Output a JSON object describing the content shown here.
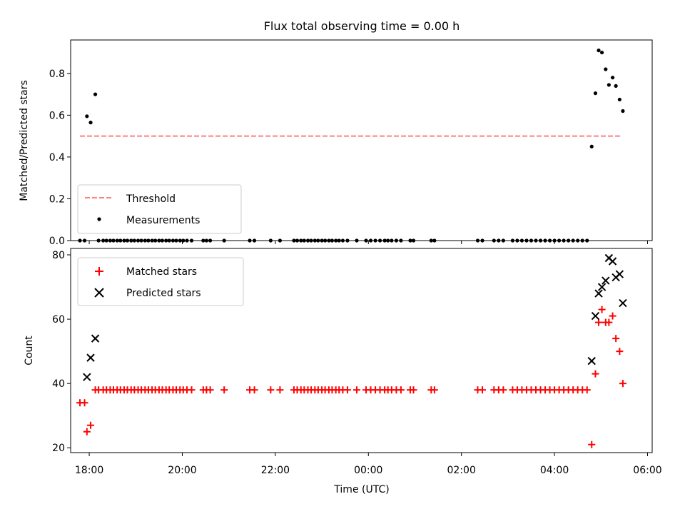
{
  "chart_data": [
    {
      "type": "scatter",
      "title": "Flux total observing time = 0.00 h",
      "ylabel": "Matched/Predicted stars",
      "xlabel": "",
      "x_unit": "hours since 18:00 UTC",
      "xlim": [
        -0.4,
        12.1
      ],
      "ylim": [
        0,
        0.96
      ],
      "yticks": [
        0.0,
        0.2,
        0.4,
        0.6,
        0.8
      ],
      "ytick_labels": [
        "0.0",
        "0.2",
        "0.4",
        "0.6",
        "0.8"
      ],
      "legend": "lower-left",
      "series": [
        {
          "name": "Threshold",
          "style": "dashed-line",
          "color": "#ff7f7f",
          "x": [
            -0.2,
            11.45
          ],
          "y": [
            0.5,
            0.5
          ]
        },
        {
          "name": "Measurements",
          "style": "dot",
          "color": "#000000",
          "points": [
            [
              -0.2,
              0.0
            ],
            [
              -0.1,
              0.0
            ],
            [
              -0.05,
              0.595
            ],
            [
              0.03,
              0.565
            ],
            [
              0.13,
              0.7
            ],
            [
              10.8,
              0.45
            ],
            [
              10.88,
              0.705
            ],
            [
              10.95,
              0.91
            ],
            [
              11.02,
              0.9
            ],
            [
              11.1,
              0.82
            ],
            [
              11.17,
              0.745
            ],
            [
              11.25,
              0.78
            ],
            [
              11.32,
              0.74
            ],
            [
              11.4,
              0.675
            ],
            [
              11.47,
              0.62
            ],
            [
              0.2,
              0.0
            ],
            [
              0.3,
              0.0
            ],
            [
              0.37,
              0.0
            ],
            [
              0.45,
              0.0
            ],
            [
              0.52,
              0.0
            ],
            [
              0.6,
              0.0
            ],
            [
              0.67,
              0.0
            ],
            [
              0.75,
              0.0
            ],
            [
              0.82,
              0.0
            ],
            [
              0.9,
              0.0
            ],
            [
              0.97,
              0.0
            ],
            [
              1.05,
              0.0
            ],
            [
              1.12,
              0.0
            ],
            [
              1.2,
              0.0
            ],
            [
              1.27,
              0.0
            ],
            [
              1.35,
              0.0
            ],
            [
              1.42,
              0.0
            ],
            [
              1.5,
              0.0
            ],
            [
              1.57,
              0.0
            ],
            [
              1.65,
              0.0
            ],
            [
              1.72,
              0.0
            ],
            [
              1.8,
              0.0
            ],
            [
              1.87,
              0.0
            ],
            [
              1.95,
              0.0
            ],
            [
              2.02,
              0.0
            ],
            [
              2.1,
              0.0
            ],
            [
              2.2,
              0.0
            ],
            [
              2.45,
              0.0
            ],
            [
              2.52,
              0.0
            ],
            [
              2.6,
              0.0
            ],
            [
              2.9,
              0.0
            ],
            [
              3.45,
              0.0
            ],
            [
              3.55,
              0.0
            ],
            [
              3.9,
              0.0
            ],
            [
              4.1,
              0.0
            ],
            [
              4.4,
              0.0
            ],
            [
              4.47,
              0.0
            ],
            [
              4.55,
              0.0
            ],
            [
              4.62,
              0.0
            ],
            [
              4.7,
              0.0
            ],
            [
              4.77,
              0.0
            ],
            [
              4.85,
              0.0
            ],
            [
              4.92,
              0.0
            ],
            [
              5.0,
              0.0
            ],
            [
              5.07,
              0.0
            ],
            [
              5.15,
              0.0
            ],
            [
              5.22,
              0.0
            ],
            [
              5.3,
              0.0
            ],
            [
              5.37,
              0.0
            ],
            [
              5.45,
              0.0
            ],
            [
              5.55,
              0.0
            ],
            [
              5.75,
              0.0
            ],
            [
              5.95,
              0.0
            ],
            [
              6.05,
              0.0
            ],
            [
              6.15,
              0.0
            ],
            [
              6.25,
              0.0
            ],
            [
              6.35,
              0.0
            ],
            [
              6.42,
              0.0
            ],
            [
              6.5,
              0.0
            ],
            [
              6.6,
              0.0
            ],
            [
              6.7,
              0.0
            ],
            [
              6.9,
              0.0
            ],
            [
              6.97,
              0.0
            ],
            [
              7.35,
              0.0
            ],
            [
              7.42,
              0.0
            ],
            [
              8.35,
              0.0
            ],
            [
              8.45,
              0.0
            ],
            [
              8.7,
              0.0
            ],
            [
              8.8,
              0.0
            ],
            [
              8.9,
              0.0
            ],
            [
              9.1,
              0.0
            ],
            [
              9.2,
              0.0
            ],
            [
              9.3,
              0.0
            ],
            [
              9.4,
              0.0
            ],
            [
              9.5,
              0.0
            ],
            [
              9.6,
              0.0
            ],
            [
              9.7,
              0.0
            ],
            [
              9.8,
              0.0
            ],
            [
              9.9,
              0.0
            ],
            [
              10.0,
              0.0
            ],
            [
              10.1,
              0.0
            ],
            [
              10.2,
              0.0
            ],
            [
              10.3,
              0.0
            ],
            [
              10.4,
              0.0
            ],
            [
              10.5,
              0.0
            ],
            [
              10.6,
              0.0
            ],
            [
              10.7,
              0.0
            ]
          ]
        }
      ]
    },
    {
      "type": "scatter",
      "title": "",
      "ylabel": "Count",
      "xlabel": "Time (UTC)",
      "x_unit": "hours since 18:00 UTC",
      "xlim": [
        -0.4,
        12.1
      ],
      "ylim": [
        18.5,
        82
      ],
      "yticks": [
        20,
        40,
        60,
        80
      ],
      "ytick_labels": [
        "20",
        "40",
        "60",
        "80"
      ],
      "xticks": [
        0,
        2,
        4,
        6,
        8,
        10,
        12
      ],
      "xtick_labels": [
        "18:00",
        "20:00",
        "22:00",
        "00:00",
        "02:00",
        "04:00",
        "06:00"
      ],
      "legend": "top-left",
      "series": [
        {
          "name": "Matched stars",
          "style": "plus",
          "color": "#ff0000",
          "points": [
            [
              -0.2,
              34
            ],
            [
              -0.1,
              34
            ],
            [
              -0.05,
              25
            ],
            [
              0.03,
              27
            ],
            [
              0.13,
              38
            ],
            [
              0.2,
              38
            ],
            [
              0.3,
              38
            ],
            [
              0.37,
              38
            ],
            [
              0.45,
              38
            ],
            [
              0.52,
              38
            ],
            [
              0.6,
              38
            ],
            [
              0.67,
              38
            ],
            [
              0.75,
              38
            ],
            [
              0.82,
              38
            ],
            [
              0.9,
              38
            ],
            [
              0.97,
              38
            ],
            [
              1.05,
              38
            ],
            [
              1.12,
              38
            ],
            [
              1.2,
              38
            ],
            [
              1.27,
              38
            ],
            [
              1.35,
              38
            ],
            [
              1.42,
              38
            ],
            [
              1.5,
              38
            ],
            [
              1.57,
              38
            ],
            [
              1.65,
              38
            ],
            [
              1.72,
              38
            ],
            [
              1.8,
              38
            ],
            [
              1.87,
              38
            ],
            [
              1.95,
              38
            ],
            [
              2.02,
              38
            ],
            [
              2.1,
              38
            ],
            [
              2.2,
              38
            ],
            [
              2.45,
              38
            ],
            [
              2.52,
              38
            ],
            [
              2.6,
              38
            ],
            [
              2.9,
              38
            ],
            [
              3.45,
              38
            ],
            [
              3.55,
              38
            ],
            [
              3.9,
              38
            ],
            [
              4.1,
              38
            ],
            [
              4.4,
              38
            ],
            [
              4.47,
              38
            ],
            [
              4.55,
              38
            ],
            [
              4.62,
              38
            ],
            [
              4.7,
              38
            ],
            [
              4.77,
              38
            ],
            [
              4.85,
              38
            ],
            [
              4.92,
              38
            ],
            [
              5.0,
              38
            ],
            [
              5.07,
              38
            ],
            [
              5.15,
              38
            ],
            [
              5.22,
              38
            ],
            [
              5.3,
              38
            ],
            [
              5.37,
              38
            ],
            [
              5.45,
              38
            ],
            [
              5.55,
              38
            ],
            [
              5.75,
              38
            ],
            [
              5.95,
              38
            ],
            [
              6.05,
              38
            ],
            [
              6.15,
              38
            ],
            [
              6.25,
              38
            ],
            [
              6.35,
              38
            ],
            [
              6.42,
              38
            ],
            [
              6.5,
              38
            ],
            [
              6.6,
              38
            ],
            [
              6.7,
              38
            ],
            [
              6.9,
              38
            ],
            [
              6.97,
              38
            ],
            [
              7.35,
              38
            ],
            [
              7.42,
              38
            ],
            [
              8.35,
              38
            ],
            [
              8.45,
              38
            ],
            [
              8.7,
              38
            ],
            [
              8.8,
              38
            ],
            [
              8.9,
              38
            ],
            [
              9.1,
              38
            ],
            [
              9.2,
              38
            ],
            [
              9.3,
              38
            ],
            [
              9.4,
              38
            ],
            [
              9.5,
              38
            ],
            [
              9.6,
              38
            ],
            [
              9.7,
              38
            ],
            [
              9.8,
              38
            ],
            [
              9.9,
              38
            ],
            [
              10.0,
              38
            ],
            [
              10.1,
              38
            ],
            [
              10.2,
              38
            ],
            [
              10.3,
              38
            ],
            [
              10.4,
              38
            ],
            [
              10.5,
              38
            ],
            [
              10.6,
              38
            ],
            [
              10.7,
              38
            ],
            [
              10.8,
              21
            ],
            [
              10.88,
              43
            ],
            [
              10.95,
              59
            ],
            [
              11.02,
              63
            ],
            [
              11.1,
              59
            ],
            [
              11.17,
              59
            ],
            [
              11.25,
              61
            ],
            [
              11.32,
              54
            ],
            [
              11.4,
              50
            ],
            [
              11.47,
              40
            ]
          ]
        },
        {
          "name": "Predicted stars",
          "style": "x",
          "color": "#000000",
          "points": [
            [
              -0.05,
              42
            ],
            [
              0.03,
              48
            ],
            [
              0.13,
              54
            ],
            [
              10.8,
              47
            ],
            [
              10.88,
              61
            ],
            [
              10.95,
              68
            ],
            [
              11.02,
              70
            ],
            [
              11.1,
              72
            ],
            [
              11.17,
              79
            ],
            [
              11.25,
              78
            ],
            [
              11.32,
              73
            ],
            [
              11.4,
              74
            ],
            [
              11.47,
              65
            ]
          ]
        }
      ]
    }
  ]
}
